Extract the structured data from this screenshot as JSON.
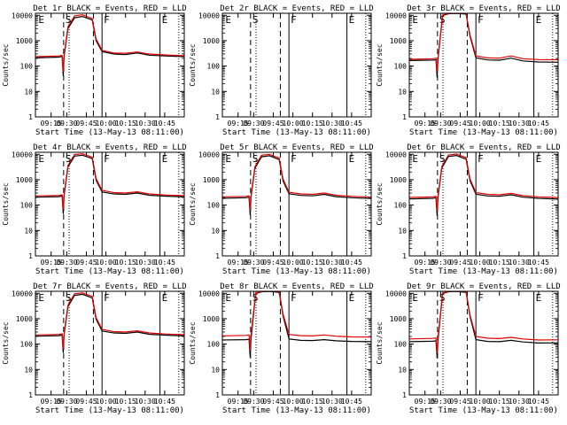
{
  "figure": {
    "xlabel": "Start Time (13-May-13 08:11:00)",
    "ylabel": "Counts/sec"
  },
  "chart_data": {
    "type": "line",
    "title_template": "Det {det} BLACK = Events, RED = LLD",
    "xlabel": "Start Time (13-May-13 08:11:00)",
    "ylabel": "Counts/sec",
    "y_scale": "log",
    "ylim": [
      1,
      12000
    ],
    "xlim_minutes_after_0811": [
      0,
      38
    ],
    "x_ticks": [
      {
        "label": "09:15",
        "minute": 4
      },
      {
        "label": "09:30",
        "minute": 8
      },
      {
        "label": "09:45",
        "minute": 13
      },
      {
        "label": "10:00",
        "minute": 18
      },
      {
        "label": "10:15",
        "minute": 23
      },
      {
        "label": "10:30",
        "minute": 28
      },
      {
        "label": "10:45",
        "minute": 33
      }
    ],
    "y_ticks": [
      {
        "label": "1",
        "value": 1
      },
      {
        "label": "10",
        "value": 10
      },
      {
        "label": "100",
        "value": 100
      },
      {
        "label": "1000",
        "value": 1000
      },
      {
        "label": "10000",
        "value": 10000
      }
    ],
    "markers": {
      "dashed": [
        7.2,
        14.8
      ],
      "dotted": [
        8.6,
        36.6
      ],
      "solid": [
        17.0,
        31.8
      ],
      "letters": [
        {
          "text": "E",
          "minute": 0.3
        },
        {
          "text": "S",
          "minute": 7.2
        },
        {
          "text": "F",
          "minute": 17.0
        },
        {
          "text": "E",
          "minute": 31.8
        }
      ]
    },
    "series_names": [
      "Events (BLACK)",
      "LLD (RED)"
    ],
    "panels": [
      {
        "det": "1r",
        "series": [
          {
            "name": "Events",
            "color": "#000000",
            "x": [
              0,
              6,
              6.8,
              7.1,
              7.3,
              8.3,
              10,
              12,
              14.5,
              15.5,
              17,
              20,
              23,
              26,
              29,
              33,
              38
            ],
            "y": [
              210,
              225,
              240,
              40,
              230,
              3000,
              8000,
              9000,
              6500,
              1000,
              370,
              300,
              285,
              330,
              270,
              250,
              235
            ]
          },
          {
            "name": "LLD",
            "color": "#e00000",
            "x": [
              0,
              6,
              6.8,
              7.1,
              7.3,
              8.3,
              10,
              12,
              14.5,
              15.5,
              17,
              20,
              23,
              26,
              29,
              33,
              38
            ],
            "y": [
              235,
              250,
              265,
              60,
              260,
              3500,
              9500,
              10500,
              7500,
              1150,
              420,
              330,
              320,
              360,
              300,
              275,
              255
            ]
          }
        ]
      },
      {
        "det": "2r",
        "series": [
          {
            "name": "Events",
            "color": "#000000",
            "x": [],
            "y": []
          },
          {
            "name": "LLD",
            "color": "#e00000",
            "x": [],
            "y": []
          }
        ]
      },
      {
        "det": "3r",
        "series": [
          {
            "name": "Events",
            "color": "#000000",
            "x": [
              0,
              6,
              6.8,
              7.1,
              7.3,
              8.5,
              10,
              12,
              14.5,
              15.5,
              17,
              20,
              23,
              26,
              29,
              33,
              38
            ],
            "y": [
              165,
              172,
              178,
              35,
              175,
              9800,
              11500,
              11800,
              11200,
              1500,
              210,
              175,
              170,
              205,
              160,
              145,
              142
            ]
          },
          {
            "name": "LLD",
            "color": "#e00000",
            "x": [
              0,
              6,
              6.8,
              7.1,
              7.3,
              8.5,
              10,
              12,
              14.5,
              15.5,
              17,
              20,
              23,
              26,
              29,
              33,
              38
            ],
            "y": [
              185,
              195,
              205,
              60,
              200,
              10200,
              12000,
              12000,
              11800,
              1700,
              250,
              210,
              205,
              250,
              195,
              180,
              178
            ]
          }
        ]
      },
      {
        "det": "4r",
        "series": [
          {
            "name": "Events",
            "color": "#000000",
            "x": [
              0,
              6,
              6.8,
              7.1,
              7.3,
              8.3,
              10,
              12,
              14.5,
              15.5,
              17,
              20,
              23,
              26,
              29,
              33,
              38
            ],
            "y": [
              205,
              215,
              230,
              45,
              225,
              3200,
              8500,
              9200,
              6800,
              950,
              330,
              275,
              265,
              300,
              245,
              225,
              210
            ]
          },
          {
            "name": "LLD",
            "color": "#e00000",
            "x": [
              0,
              6,
              6.8,
              7.1,
              7.3,
              8.3,
              10,
              12,
              14.5,
              15.5,
              17,
              20,
              23,
              26,
              29,
              33,
              38
            ],
            "y": [
              230,
              240,
              255,
              65,
              250,
              3600,
              9800,
              10500,
              7800,
              1100,
              380,
              310,
              300,
              335,
              275,
              250,
              235
            ]
          }
        ]
      },
      {
        "det": "5r",
        "series": [
          {
            "name": "Events",
            "color": "#000000",
            "x": [
              0,
              6,
              6.8,
              7.1,
              7.3,
              8.3,
              10,
              12,
              14.5,
              15.5,
              17,
              20,
              23,
              26,
              29,
              33,
              38
            ],
            "y": [
              185,
              195,
              205,
              40,
              200,
              2800,
              8000,
              8800,
              6200,
              900,
              280,
              240,
              232,
              265,
              215,
              195,
              182
            ]
          },
          {
            "name": "LLD",
            "color": "#e00000",
            "x": [
              0,
              6,
              6.8,
              7.1,
              7.3,
              8.3,
              10,
              12,
              14.5,
              15.5,
              17,
              20,
              23,
              26,
              29,
              33,
              38
            ],
            "y": [
              210,
              220,
              232,
              60,
              228,
              3200,
              9200,
              10000,
              7200,
              1050,
              320,
              275,
              265,
              300,
              245,
              222,
              205
            ]
          }
        ]
      },
      {
        "det": "6r",
        "series": [
          {
            "name": "Events",
            "color": "#000000",
            "x": [
              0,
              6,
              6.8,
              7.1,
              7.3,
              8.3,
              10,
              12,
              14.5,
              15.5,
              17,
              20,
              23,
              26,
              29,
              33,
              38
            ],
            "y": [
              175,
              185,
              195,
              38,
              190,
              2900,
              8200,
              9000,
              6400,
              920,
              270,
              230,
              222,
              255,
              205,
              185,
              172
            ]
          },
          {
            "name": "LLD",
            "color": "#e00000",
            "x": [
              0,
              6,
              6.8,
              7.1,
              7.3,
              8.3,
              10,
              12,
              14.5,
              15.5,
              17,
              20,
              23,
              26,
              29,
              33,
              38
            ],
            "y": [
              200,
              210,
              222,
              58,
              218,
              3300,
              9400,
              10200,
              7400,
              1080,
              310,
              265,
              255,
              290,
              235,
              212,
              198
            ]
          }
        ]
      },
      {
        "det": "7r",
        "series": [
          {
            "name": "Events",
            "color": "#000000",
            "x": [
              0,
              6,
              6.8,
              7.1,
              7.3,
              8.3,
              10,
              12,
              14.5,
              15.5,
              17,
              20,
              23,
              26,
              29,
              33,
              38
            ],
            "y": [
              205,
              215,
              230,
              45,
              225,
              3000,
              8300,
              9100,
              6600,
              950,
              330,
              275,
              265,
              300,
              245,
              225,
              210
            ]
          },
          {
            "name": "LLD",
            "color": "#e00000",
            "x": [
              0,
              6,
              6.8,
              7.1,
              7.3,
              8.3,
              10,
              12,
              14.5,
              15.5,
              17,
              20,
              23,
              26,
              29,
              33,
              38
            ],
            "y": [
              230,
              240,
              255,
              65,
              250,
              3400,
              9600,
              10400,
              7600,
              1100,
              380,
              310,
              300,
              335,
              275,
              250,
              235
            ]
          }
        ]
      },
      {
        "det": "8r",
        "series": [
          {
            "name": "Events",
            "color": "#000000",
            "x": [
              0,
              6,
              6.8,
              7.1,
              7.3,
              8.5,
              10,
              12,
              14.5,
              15.5,
              17,
              20,
              23,
              26,
              29,
              33,
              38
            ],
            "y": [
              145,
              150,
              155,
              30,
              152,
              9800,
              11500,
              11800,
              11000,
              1300,
              160,
              140,
              138,
              150,
              135,
              128,
              125
            ]
          },
          {
            "name": "LLD",
            "color": "#e00000",
            "x": [
              0,
              6,
              6.8,
              7.1,
              7.3,
              8.5,
              10,
              12,
              14.5,
              15.5,
              17,
              20,
              23,
              26,
              29,
              33,
              38
            ],
            "y": [
              210,
              220,
              230,
              55,
              228,
              10200,
              12000,
              12000,
              11800,
              1500,
              240,
              215,
              210,
              230,
              205,
              192,
              190
            ]
          }
        ]
      },
      {
        "det": "9r",
        "series": [
          {
            "name": "Events",
            "color": "#000000",
            "x": [
              0,
              6,
              6.8,
              7.1,
              7.3,
              8.5,
              10,
              12,
              14.5,
              15.5,
              17,
              20,
              23,
              26,
              29,
              33,
              38
            ],
            "y": [
              125,
              130,
              135,
              28,
              132,
              9800,
              11500,
              11800,
              11000,
              1250,
              150,
              128,
              125,
              140,
              122,
              110,
              112
            ]
          },
          {
            "name": "LLD",
            "color": "#e00000",
            "x": [
              0,
              6,
              6.8,
              7.1,
              7.3,
              8.5,
              10,
              12,
              14.5,
              15.5,
              17,
              20,
              23,
              26,
              29,
              33,
              38
            ],
            "y": [
              160,
              168,
              175,
              45,
              172,
              10200,
              12000,
              12000,
              11800,
              1400,
              200,
              170,
              165,
              185,
              160,
              145,
              148
            ]
          }
        ]
      }
    ]
  }
}
